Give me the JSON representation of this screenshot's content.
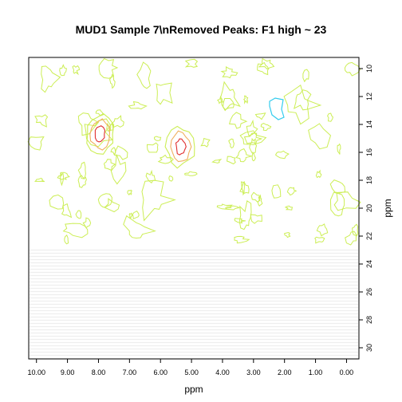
{
  "chart_data": {
    "type": "contour",
    "title": "MUD1 Sample 7\\nRemoved Peaks: F1 high ~ 23",
    "xlabel": "ppm",
    "ylabel": "ppm",
    "xlim": [
      10.25,
      -0.4
    ],
    "ylim": [
      9.2,
      30.8
    ],
    "x_ticks": [
      "10.00",
      "9.00",
      "8.00",
      "7.00",
      "6.00",
      "5.00",
      "4.00",
      "3.00",
      "2.00",
      "1.00",
      "0.00"
    ],
    "y_ticks": [
      10,
      12,
      14,
      16,
      18,
      20,
      22,
      24,
      26,
      28,
      30
    ],
    "removed_region": {
      "y_from": 23,
      "y_to": 30.8,
      "color": "#eeeeee"
    },
    "colors": {
      "low": "#ccee55",
      "mid": "#f0b060",
      "high": "#e03030",
      "negative": "#33ccee"
    },
    "peaks": [
      {
        "x": 7.95,
        "y": 14.7,
        "levels": 3
      },
      {
        "x": 5.35,
        "y": 15.6,
        "levels": 3
      }
    ],
    "negative_peaks": [
      {
        "x": 2.25,
        "y": 12.8
      }
    ]
  }
}
